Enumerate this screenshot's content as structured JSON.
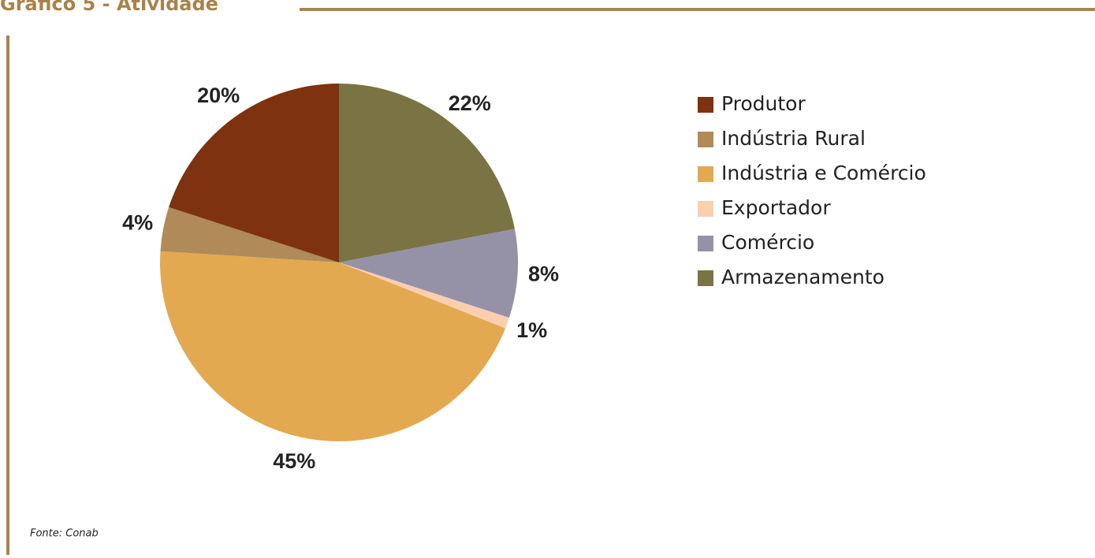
{
  "chart_data": {
    "type": "pie",
    "title": "Gráfico 5 - Atividade",
    "source": "Fonte: Conab",
    "categories": [
      "Produtor",
      "Indústria Rural",
      "Indústria e Comércio",
      "Exportador",
      "Comércio",
      "Armazenamento"
    ],
    "values": [
      20,
      4,
      45,
      1,
      8,
      22
    ],
    "value_labels": [
      "20%",
      "4%",
      "45%",
      "1%",
      "8%",
      "22%"
    ],
    "colors": [
      "#7f3210",
      "#b08a58",
      "#e2a950",
      "#f9cfae",
      "#9592a8",
      "#7a7444"
    ],
    "legend": "right"
  }
}
